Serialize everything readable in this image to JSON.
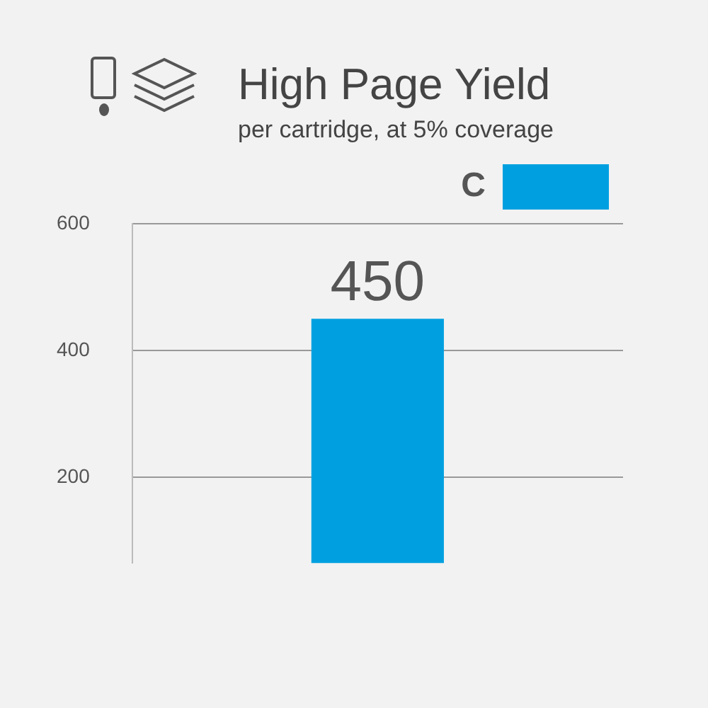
{
  "chart_data": {
    "type": "bar",
    "title": "High Page Yield",
    "subtitle": "per cartridge, at 5% coverage",
    "categories": [
      null
    ],
    "series": [
      {
        "name": "C",
        "color": "#00a0e0",
        "values": [
          450
        ]
      }
    ],
    "ylim": [
      65,
      600
    ],
    "yticks": [
      200,
      400,
      600
    ],
    "grid": "y",
    "legend": "top right",
    "data_labels": true,
    "tick_labels": "y"
  }
}
